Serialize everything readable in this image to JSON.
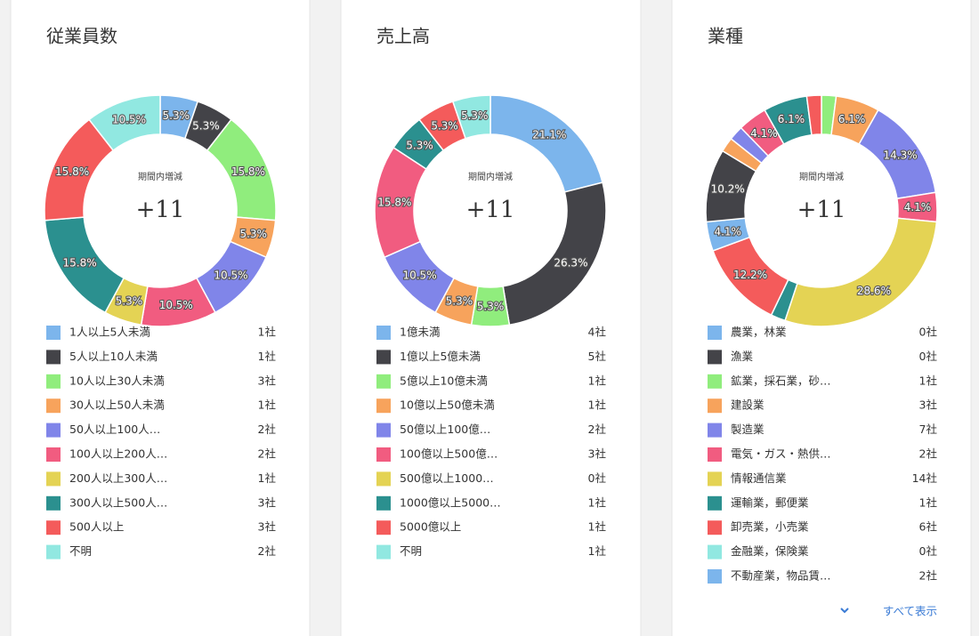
{
  "chart_data": [
    {
      "type": "pie",
      "title": "従業員数",
      "center_label": "期間内増減",
      "center_value": "+11",
      "categories": [
        "1人以上5人未満",
        "5人以上10人未満",
        "10人以上30人未満",
        "30人以上50人未満",
        "50人以上100人…",
        "100人以上200人…",
        "200人以上300人…",
        "300人以上500人…",
        "500人以上",
        "不明"
      ],
      "values": [
        1,
        1,
        3,
        1,
        2,
        2,
        1,
        3,
        3,
        2
      ],
      "value_labels": [
        "1社",
        "1社",
        "3社",
        "1社",
        "2社",
        "2社",
        "1社",
        "3社",
        "3社",
        "2社"
      ],
      "percent_labels": [
        "5.3%",
        "5.3%",
        "15.8%",
        "5.3%",
        "10.5%",
        "10.5%",
        "5.3%",
        "15.8%",
        "15.8%",
        "10.5%"
      ],
      "colors": [
        "#7cb5ec",
        "#434348",
        "#90ed7d",
        "#f7a35c",
        "#8085e9",
        "#f15c80",
        "#e4d354",
        "#2b908f",
        "#f45b5b",
        "#91e8e1"
      ]
    },
    {
      "type": "pie",
      "title": "売上高",
      "center_label": "期間内増減",
      "center_value": "+11",
      "categories": [
        "1億未満",
        "1億以上5億未満",
        "5億以上10億未満",
        "10億以上50億未満",
        "50億以上100億…",
        "100億以上500億…",
        "500億以上1000…",
        "1000億以上5000…",
        "5000億以上",
        "不明"
      ],
      "values": [
        4,
        5,
        1,
        1,
        2,
        3,
        0,
        1,
        1,
        1
      ],
      "value_labels": [
        "4社",
        "5社",
        "1社",
        "1社",
        "2社",
        "3社",
        "0社",
        "1社",
        "1社",
        "1社"
      ],
      "percent_labels": [
        "21.1%",
        "26.3%",
        "5.3%",
        "5.3%",
        "10.5%",
        "15.8%",
        null,
        "5.3%",
        "5.3%",
        "5.3%"
      ],
      "colors": [
        "#7cb5ec",
        "#434348",
        "#90ed7d",
        "#f7a35c",
        "#8085e9",
        "#f15c80",
        "#e4d354",
        "#2b908f",
        "#f45b5b",
        "#91e8e1"
      ]
    },
    {
      "type": "pie",
      "title": "業種",
      "center_label": "期間内増減",
      "center_value": "+11",
      "show_all": "すべて表示",
      "categories": [
        "農業，林業",
        "漁業",
        "鉱業，採石業，砂…",
        "建設業",
        "製造業",
        "電気・ガス・熱供…",
        "情報通信業",
        "運輸業，郵便業",
        "卸売業，小売業",
        "金融業，保険業",
        "不動産業，物品賃…",
        null,
        null,
        null,
        null,
        null,
        null,
        null,
        null
      ],
      "values": [
        0,
        0,
        1,
        3,
        7,
        2,
        14,
        1,
        6,
        0,
        2,
        5,
        0,
        1,
        1,
        2,
        0,
        3,
        1
      ],
      "value_labels": [
        "0社",
        "0社",
        "1社",
        "3社",
        "7社",
        "2社",
        "14社",
        "1社",
        "6社",
        "0社",
        "2社",
        null,
        null,
        null,
        null,
        null,
        null,
        null,
        null
      ],
      "percent_labels": [
        null,
        null,
        null,
        "6.1%",
        "14.3%",
        "4.1%",
        "28.6%",
        null,
        "12.2%",
        null,
        "4.1%",
        "10.2%",
        null,
        null,
        null,
        "4.1%",
        null,
        "6.1%",
        null
      ],
      "colors": [
        "#7cb5ec",
        "#434348",
        "#90ed7d",
        "#f7a35c",
        "#8085e9",
        "#f15c80",
        "#e4d354",
        "#2b908f",
        "#f45b5b",
        "#91e8e1",
        "#7cb5ec",
        "#434348",
        "#90ed7d",
        "#f7a35c",
        "#8085e9",
        "#f15c80",
        "#e4d354",
        "#2b908f",
        "#f45b5b"
      ]
    }
  ]
}
